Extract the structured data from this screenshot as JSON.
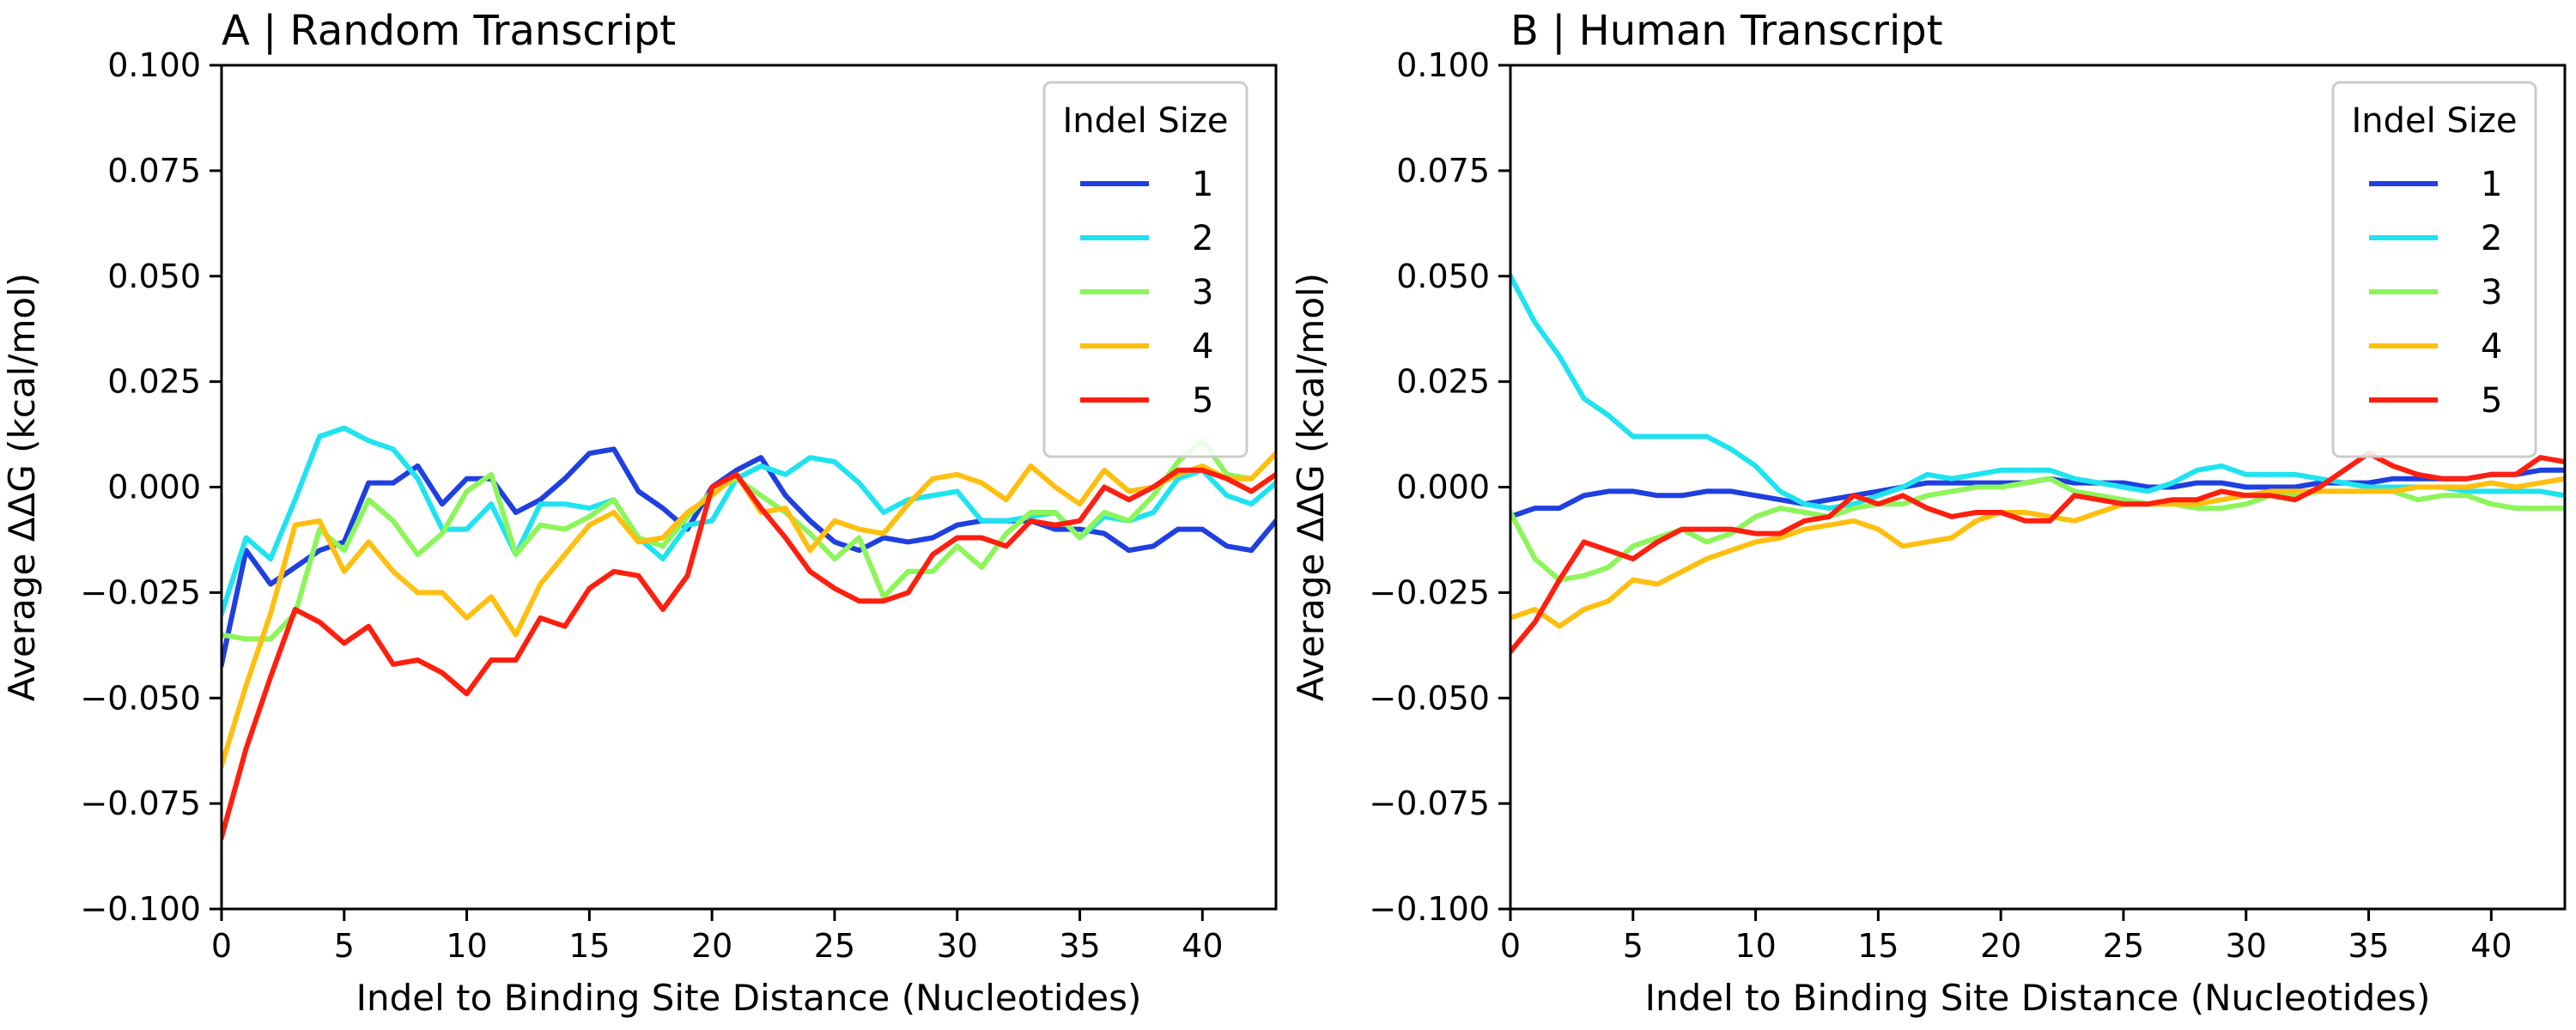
{
  "chart_data": [
    {
      "type": "line",
      "title": "A | Random Transcript",
      "xlabel": "Indel to Binding Site Distance (Nucleotides)",
      "ylabel": "Average ΔΔG (kcal/mol)",
      "xlim": [
        0,
        43
      ],
      "ylim": [
        -0.1,
        0.1
      ],
      "xticks": [
        "0",
        "5",
        "10",
        "15",
        "20",
        "25",
        "30",
        "35",
        "40"
      ],
      "yticks": [
        "−0.100",
        "−0.075",
        "−0.050",
        "−0.025",
        "0.000",
        "0.025",
        "0.050",
        "0.075",
        "0.100"
      ],
      "legend_title": "Indel Size",
      "legend_position": "top-right",
      "grid": false,
      "x": [
        0,
        1,
        2,
        3,
        4,
        5,
        6,
        7,
        8,
        9,
        10,
        11,
        12,
        13,
        14,
        15,
        16,
        17,
        18,
        19,
        20,
        21,
        22,
        23,
        24,
        25,
        26,
        27,
        28,
        29,
        30,
        31,
        32,
        33,
        34,
        35,
        36,
        37,
        38,
        39,
        40,
        41,
        42,
        43
      ],
      "series": [
        {
          "name": "1",
          "color": "#1f3fe0",
          "values": [
            -0.042,
            -0.015,
            -0.023,
            -0.019,
            -0.015,
            -0.013,
            0.001,
            0.001,
            0.005,
            -0.004,
            0.002,
            0.002,
            -0.006,
            -0.003,
            0.002,
            0.008,
            0.009,
            -0.001,
            -0.005,
            -0.01,
            0.0,
            0.004,
            0.007,
            -0.002,
            -0.008,
            -0.013,
            -0.015,
            -0.012,
            -0.013,
            -0.012,
            -0.009,
            -0.008,
            -0.008,
            -0.008,
            -0.01,
            -0.01,
            -0.011,
            -0.015,
            -0.014,
            -0.01,
            -0.01,
            -0.014,
            -0.015,
            -0.008
          ]
        },
        {
          "name": "2",
          "color": "#1fe3f0",
          "values": [
            -0.03,
            -0.012,
            -0.017,
            -0.003,
            0.012,
            0.014,
            0.011,
            0.009,
            0.002,
            -0.01,
            -0.01,
            -0.004,
            -0.016,
            -0.004,
            -0.004,
            -0.005,
            -0.003,
            -0.012,
            -0.017,
            -0.009,
            -0.008,
            0.002,
            0.005,
            0.003,
            0.007,
            0.006,
            0.001,
            -0.006,
            -0.003,
            -0.002,
            -0.001,
            -0.008,
            -0.008,
            -0.007,
            -0.006,
            -0.012,
            -0.007,
            -0.008,
            -0.006,
            0.002,
            0.004,
            -0.002,
            -0.004,
            0.001
          ]
        },
        {
          "name": "3",
          "color": "#8cf55a",
          "values": [
            -0.035,
            -0.036,
            -0.036,
            -0.03,
            -0.01,
            -0.015,
            -0.003,
            -0.008,
            -0.016,
            -0.011,
            -0.001,
            0.003,
            -0.016,
            -0.009,
            -0.01,
            -0.007,
            -0.003,
            -0.012,
            -0.014,
            -0.007,
            -0.001,
            0.002,
            -0.002,
            -0.006,
            -0.011,
            -0.017,
            -0.012,
            -0.026,
            -0.02,
            -0.02,
            -0.014,
            -0.019,
            -0.011,
            -0.006,
            -0.006,
            -0.012,
            -0.006,
            -0.008,
            -0.002,
            0.006,
            0.011,
            0.003,
            0.002,
            0.008
          ]
        },
        {
          "name": "4",
          "color": "#ffbf10",
          "values": [
            -0.066,
            -0.047,
            -0.03,
            -0.009,
            -0.008,
            -0.02,
            -0.013,
            -0.02,
            -0.025,
            -0.025,
            -0.031,
            -0.026,
            -0.035,
            -0.023,
            -0.016,
            -0.009,
            -0.006,
            -0.013,
            -0.012,
            -0.006,
            -0.002,
            0.003,
            -0.006,
            -0.005,
            -0.015,
            -0.008,
            -0.01,
            -0.011,
            -0.004,
            0.002,
            0.003,
            0.001,
            -0.003,
            0.005,
            0.0,
            -0.004,
            0.004,
            -0.001,
            0.0,
            0.003,
            0.005,
            0.002,
            0.002,
            0.008
          ]
        },
        {
          "name": "5",
          "color": "#ff1f0f",
          "values": [
            -0.083,
            -0.062,
            -0.045,
            -0.029,
            -0.032,
            -0.037,
            -0.033,
            -0.042,
            -0.041,
            -0.044,
            -0.049,
            -0.041,
            -0.041,
            -0.031,
            -0.033,
            -0.024,
            -0.02,
            -0.021,
            -0.029,
            -0.021,
            0.0,
            0.003,
            -0.005,
            -0.012,
            -0.02,
            -0.024,
            -0.027,
            -0.027,
            -0.025,
            -0.016,
            -0.012,
            -0.012,
            -0.014,
            -0.008,
            -0.009,
            -0.008,
            0.0,
            -0.003,
            0.0,
            0.004,
            0.004,
            0.002,
            -0.001,
            0.003
          ]
        }
      ]
    },
    {
      "type": "line",
      "title": "B | Human Transcript",
      "xlabel": "Indel to Binding Site Distance (Nucleotides)",
      "ylabel": "Average ΔΔG (kcal/mol)",
      "xlim": [
        0,
        43
      ],
      "ylim": [
        -0.1,
        0.1
      ],
      "xticks": [
        "0",
        "5",
        "10",
        "15",
        "20",
        "25",
        "30",
        "35",
        "40"
      ],
      "yticks": [
        "−0.100",
        "−0.075",
        "−0.050",
        "−0.025",
        "0.000",
        "0.025",
        "0.050",
        "0.075",
        "0.100"
      ],
      "legend_title": "Indel Size",
      "legend_position": "top-right",
      "grid": false,
      "x": [
        0,
        1,
        2,
        3,
        4,
        5,
        6,
        7,
        8,
        9,
        10,
        11,
        12,
        13,
        14,
        15,
        16,
        17,
        18,
        19,
        20,
        21,
        22,
        23,
        24,
        25,
        26,
        27,
        28,
        29,
        30,
        31,
        32,
        33,
        34,
        35,
        36,
        37,
        38,
        39,
        40,
        41,
        42,
        43
      ],
      "series": [
        {
          "name": "1",
          "color": "#1f3fe0",
          "values": [
            -0.007,
            -0.005,
            -0.005,
            -0.002,
            -0.001,
            -0.001,
            -0.002,
            -0.002,
            -0.001,
            -0.001,
            -0.002,
            -0.003,
            -0.004,
            -0.003,
            -0.002,
            -0.001,
            0.0,
            0.001,
            0.001,
            0.001,
            0.001,
            0.001,
            0.002,
            0.001,
            0.001,
            0.001,
            0.0,
            0.0,
            0.001,
            0.001,
            0.0,
            0.0,
            0.0,
            0.001,
            0.001,
            0.001,
            0.002,
            0.002,
            0.002,
            0.002,
            0.003,
            0.003,
            0.004,
            0.004
          ]
        },
        {
          "name": "2",
          "color": "#1fe3f0",
          "values": [
            0.05,
            0.039,
            0.031,
            0.021,
            0.017,
            0.012,
            0.012,
            0.012,
            0.012,
            0.009,
            0.005,
            -0.001,
            -0.004,
            -0.005,
            -0.004,
            -0.002,
            0.0,
            0.003,
            0.002,
            0.003,
            0.004,
            0.004,
            0.004,
            0.002,
            0.001,
            0.0,
            -0.001,
            0.001,
            0.004,
            0.005,
            0.003,
            0.003,
            0.003,
            0.002,
            0.001,
            0.0,
            0.0,
            0.0,
            0.0,
            -0.001,
            -0.001,
            -0.001,
            -0.001,
            -0.002
          ]
        },
        {
          "name": "3",
          "color": "#8cf55a",
          "values": [
            -0.006,
            -0.017,
            -0.022,
            -0.021,
            -0.019,
            -0.014,
            -0.012,
            -0.01,
            -0.013,
            -0.011,
            -0.007,
            -0.005,
            -0.006,
            -0.007,
            -0.005,
            -0.004,
            -0.004,
            -0.002,
            -0.001,
            0.0,
            0.0,
            0.001,
            0.002,
            -0.001,
            -0.002,
            -0.003,
            -0.004,
            -0.004,
            -0.005,
            -0.005,
            -0.004,
            -0.002,
            -0.002,
            -0.001,
            -0.001,
            -0.001,
            -0.001,
            -0.003,
            -0.002,
            -0.002,
            -0.004,
            -0.005,
            -0.005,
            -0.005
          ]
        },
        {
          "name": "4",
          "color": "#ffbf10",
          "values": [
            -0.031,
            -0.029,
            -0.033,
            -0.029,
            -0.027,
            -0.022,
            -0.023,
            -0.02,
            -0.017,
            -0.015,
            -0.013,
            -0.012,
            -0.01,
            -0.009,
            -0.008,
            -0.01,
            -0.014,
            -0.013,
            -0.012,
            -0.008,
            -0.006,
            -0.006,
            -0.007,
            -0.008,
            -0.006,
            -0.004,
            -0.004,
            -0.004,
            -0.004,
            -0.003,
            -0.002,
            -0.001,
            -0.001,
            -0.001,
            -0.001,
            -0.001,
            -0.001,
            0.0,
            0.0,
            0.0,
            0.001,
            0.0,
            0.001,
            0.002
          ]
        },
        {
          "name": "5",
          "color": "#ff1f0f",
          "values": [
            -0.039,
            -0.032,
            -0.022,
            -0.013,
            -0.015,
            -0.017,
            -0.013,
            -0.01,
            -0.01,
            -0.01,
            -0.011,
            -0.011,
            -0.008,
            -0.007,
            -0.002,
            -0.004,
            -0.002,
            -0.005,
            -0.007,
            -0.006,
            -0.006,
            -0.008,
            -0.008,
            -0.002,
            -0.003,
            -0.004,
            -0.004,
            -0.003,
            -0.003,
            -0.001,
            -0.002,
            -0.002,
            -0.003,
            0.0,
            0.004,
            0.008,
            0.005,
            0.003,
            0.002,
            0.002,
            0.003,
            0.003,
            0.007,
            0.006
          ]
        }
      ]
    }
  ]
}
